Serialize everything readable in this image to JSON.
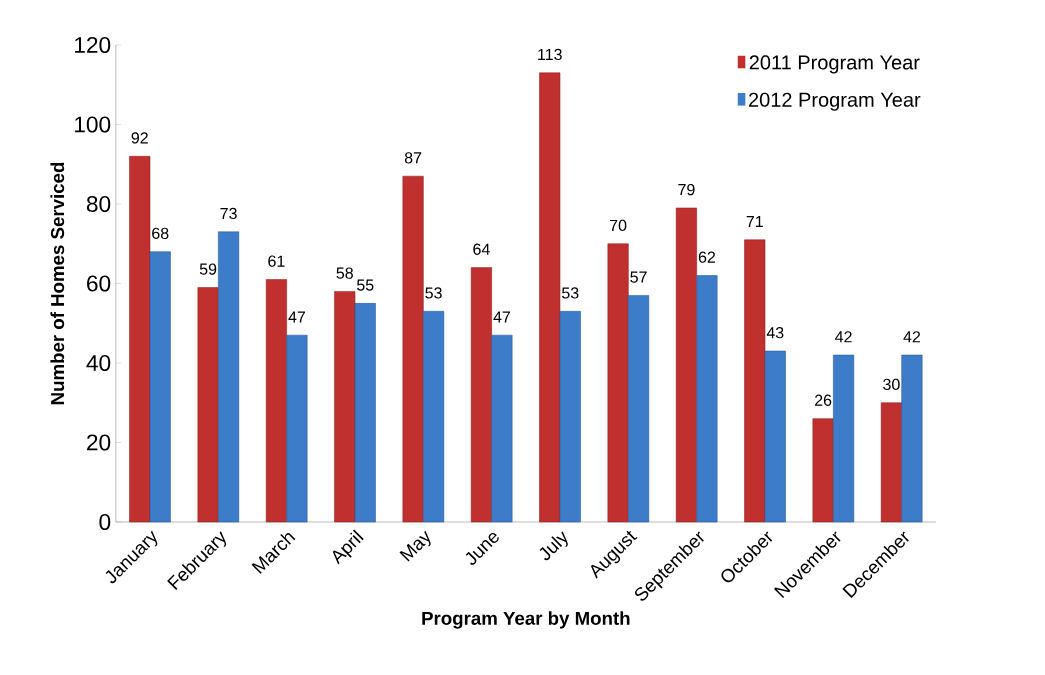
{
  "chart_data": {
    "type": "bar",
    "xlabel": "Program Year by Month",
    "ylabel": "Number of Homes Serviced",
    "categories": [
      "January",
      "February",
      "March",
      "April",
      "May",
      "June",
      "July",
      "August",
      "September",
      "October",
      "November",
      "December"
    ],
    "series": [
      {
        "name": "2011 Program Year",
        "color": "#c0302f",
        "values": [
          92,
          59,
          61,
          58,
          87,
          64,
          113,
          70,
          79,
          71,
          26,
          30
        ]
      },
      {
        "name": "2012 Program Year",
        "color": "#3c7cc8",
        "values": [
          68,
          73,
          47,
          55,
          53,
          47,
          53,
          57,
          62,
          43,
          42,
          42
        ]
      }
    ],
    "ylim": [
      0,
      120
    ],
    "yticks": [
      0,
      20,
      40,
      60,
      80,
      100,
      120
    ],
    "data_labels": true,
    "legend": "top right",
    "grid": false
  }
}
